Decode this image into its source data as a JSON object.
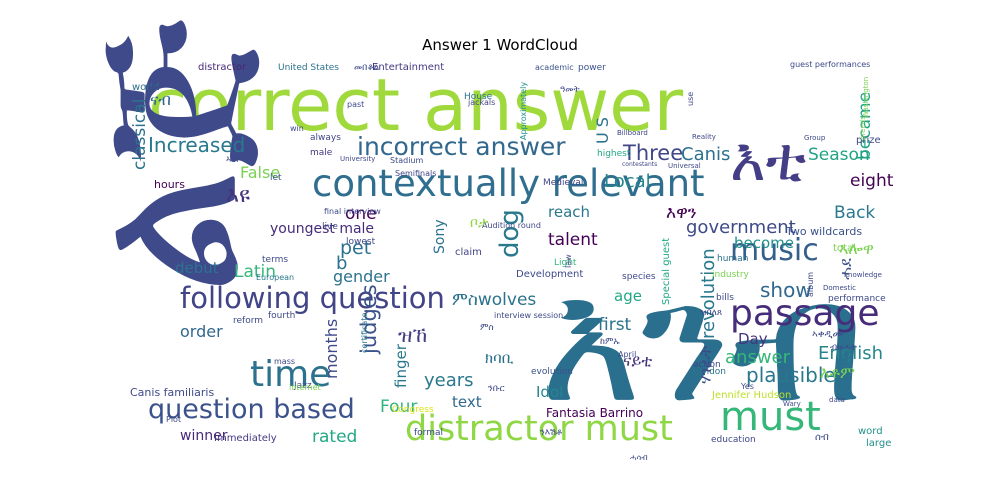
{
  "figure": {
    "title": "Answer 1 WordCloud"
  },
  "chart_data": {
    "type": "wordcloud",
    "title": "Answer 1 WordCloud",
    "colormap": "viridis",
    "background": "#ffffff",
    "words": [
      {
        "text": "correct answer",
        "color": "#a0d93c"
      },
      {
        "text": "ልጅ",
        "color": "#3f4a8a"
      },
      {
        "text": "እንብ",
        "color": "#2a6f8e"
      },
      {
        "text": "contextually relevant",
        "color": "#2f6e8e"
      },
      {
        "text": "እቲ",
        "color": "#433e85"
      },
      {
        "text": "passage",
        "color": "#472c7a"
      },
      {
        "text": "distractor must",
        "color": "#8fd744"
      },
      {
        "text": "must",
        "color": "#35b779"
      },
      {
        "text": "following question",
        "color": "#414487"
      },
      {
        "text": "question based",
        "color": "#3b528b"
      },
      {
        "text": "incorrect answer",
        "color": "#31688e"
      },
      {
        "text": "music",
        "color": "#355f8d"
      },
      {
        "text": "dog",
        "color": "#2a788e"
      },
      {
        "text": "time",
        "color": "#2c728e"
      },
      {
        "text": "Three",
        "color": "#404688"
      },
      {
        "text": "Increased",
        "color": "#2a788e"
      },
      {
        "text": "ናብ",
        "color": "#31688e"
      },
      {
        "text": "False",
        "color": "#7ad151"
      },
      {
        "text": "እዩ",
        "color": "#46337e"
      },
      {
        "text": "Canis",
        "color": "#2c728e"
      },
      {
        "text": "Season",
        "color": "#20a386"
      },
      {
        "text": "eight",
        "color": "#440154"
      },
      {
        "text": "became",
        "color": "#20a386"
      },
      {
        "text": "Back",
        "color": "#2a788e"
      },
      {
        "text": "Local",
        "color": "#25858e"
      },
      {
        "text": "Four",
        "color": "#2fb47c"
      },
      {
        "text": "one",
        "color": "#440154"
      },
      {
        "text": "pet",
        "color": "#2c728e"
      },
      {
        "text": "government",
        "color": "#3e4989"
      },
      {
        "text": "show",
        "color": "#31688e"
      },
      {
        "text": "plausible",
        "color": "#2a788e"
      },
      {
        "text": "English",
        "color": "#25858e"
      },
      {
        "text": "revolution",
        "color": "#2a788e"
      },
      {
        "text": "answer",
        "color": "#35b779"
      },
      {
        "text": "judges",
        "color": "#3b528b"
      },
      {
        "text": "years",
        "color": "#2a788e"
      },
      {
        "text": "rated",
        "color": "#22a884"
      },
      {
        "text": "Latin",
        "color": "#35b779"
      },
      {
        "text": "talent",
        "color": "#440154"
      },
      {
        "text": "classical",
        "color": "#2c728e"
      },
      {
        "text": "months",
        "color": "#3e4989"
      },
      {
        "text": "gender",
        "color": "#2c728e"
      },
      {
        "text": "order",
        "color": "#31688e"
      },
      {
        "text": "debut",
        "color": "#2c728e"
      },
      {
        "text": "reach",
        "color": "#2a788e"
      },
      {
        "text": "become",
        "color": "#21918c"
      },
      {
        "text": "first",
        "color": "#2c728e"
      },
      {
        "text": "age",
        "color": "#22a884"
      },
      {
        "text": "Day",
        "color": "#46337e"
      },
      {
        "text": "finger",
        "color": "#2a788e"
      },
      {
        "text": "Idol",
        "color": "#25858e"
      },
      {
        "text": "text",
        "color": "#31688e"
      },
      {
        "text": "winner",
        "color": "#482878"
      },
      {
        "text": "Two",
        "color": "#2c728e"
      },
      {
        "text": "Sony",
        "color": "#2c728e"
      },
      {
        "text": "ምስwolves",
        "color": "#2c728e"
      },
      {
        "text": "ዝኸ",
        "color": "#433e85"
      },
      {
        "text": "Fantasia Barrino",
        "color": "#440154"
      },
      {
        "text": "youngest male",
        "color": "#472c7a"
      },
      {
        "text": "Two wildcards",
        "color": "#3b528b"
      },
      {
        "text": "Canis familiaris",
        "color": "#3e4989"
      },
      {
        "text": "Jennifer Hudson",
        "color": "#bddf26"
      },
      {
        "text": "Immediately",
        "color": "#443983"
      },
      {
        "text": "Entertainment",
        "color": "#443983"
      },
      {
        "text": "United States",
        "color": "#2c728e"
      },
      {
        "text": "distractor",
        "color": "#482878"
      },
      {
        "text": "Semifinals",
        "color": "#404688"
      },
      {
        "text": "Medieval",
        "color": "#414487"
      },
      {
        "text": "highest",
        "color": "#22a884"
      },
      {
        "text": "Approximately",
        "color": "#21918c"
      },
      {
        "text": "power",
        "color": "#3b528b"
      },
      {
        "text": "guest performances",
        "color": "#3e4989"
      },
      {
        "text": "hours",
        "color": "#440154"
      },
      {
        "text": "world",
        "color": "#2c728e"
      },
      {
        "text": "always",
        "color": "#404688"
      },
      {
        "text": "male",
        "color": "#443983"
      },
      {
        "text": "let",
        "color": "#3b528b"
      },
      {
        "text": "live",
        "color": "#3e4989"
      },
      {
        "text": "claim",
        "color": "#414487"
      },
      {
        "text": "reform",
        "color": "#3e4989"
      },
      {
        "text": "terms",
        "color": "#3e4989"
      },
      {
        "text": "European",
        "color": "#2a788e"
      },
      {
        "text": "Jazz",
        "color": "#3e4989"
      },
      {
        "text": "evolution",
        "color": "#3b528b"
      },
      {
        "text": "formal",
        "color": "#3e4989"
      },
      {
        "text": "education",
        "color": "#3e4989"
      },
      {
        "text": "Development",
        "color": "#3e4989"
      },
      {
        "text": "Light",
        "color": "#35b779"
      },
      {
        "text": "human",
        "color": "#2c728e"
      },
      {
        "text": "industry",
        "color": "#7ad151"
      },
      {
        "text": "species",
        "color": "#3e4989"
      },
      {
        "text": "London",
        "color": "#2c728e"
      },
      {
        "text": "action",
        "color": "#3e4989"
      },
      {
        "text": "bills",
        "color": "#3e4989"
      },
      {
        "text": "performance",
        "color": "#3e4989"
      },
      {
        "text": "prize",
        "color": "#3e4989"
      },
      {
        "text": "total",
        "color": "#7ad151"
      },
      {
        "text": "large",
        "color": "#21918c"
      },
      {
        "text": "word",
        "color": "#21918c"
      },
      {
        "text": "Special guest",
        "color": "#22a884"
      },
      {
        "text": "interview session",
        "color": "#3e4989"
      },
      {
        "text": "House",
        "color": "#2c728e"
      },
      {
        "text": "jackals",
        "color": "#414487"
      },
      {
        "text": "academic",
        "color": "#3b528b"
      },
      {
        "text": "Stadium",
        "color": "#3e4989"
      },
      {
        "text": "final interview",
        "color": "#3e4989"
      },
      {
        "text": "lowest",
        "color": "#3e4989"
      },
      {
        "text": "Audition round",
        "color": "#3e4989"
      },
      {
        "text": "Congress",
        "color": "#dde318"
      },
      {
        "text": "certificate",
        "color": "#2a788e"
      },
      {
        "text": "internet",
        "color": "#7ad151"
      },
      {
        "text": "fourth",
        "color": "#3e4989"
      },
      {
        "text": "mass",
        "color": "#3e4989"
      },
      {
        "text": "Plot",
        "color": "#3e4989"
      },
      {
        "text": "Yes",
        "color": "#3e4989"
      },
      {
        "text": "April",
        "color": "#3e4989"
      },
      {
        "text": "Billboard",
        "color": "#3e4989"
      },
      {
        "text": "Reality",
        "color": "#3e4989"
      },
      {
        "text": "Group",
        "color": "#3e4989"
      },
      {
        "text": "Universal",
        "color": "#3e4989"
      },
      {
        "text": "contestants",
        "color": "#3e4989"
      },
      {
        "text": "University",
        "color": "#3e4989"
      },
      {
        "text": "Domestic",
        "color": "#3e4989"
      },
      {
        "text": "knowledge",
        "color": "#3e4989"
      },
      {
        "text": "album",
        "color": "#3e4989"
      },
      {
        "text": "breeds",
        "color": "#7ad151"
      },
      {
        "text": "Washington",
        "color": "#7ad151"
      },
      {
        "text": "Wary",
        "color": "#3e4989"
      },
      {
        "text": "data",
        "color": "#3e4989"
      },
      {
        "text": "law",
        "color": "#3e4989"
      },
      {
        "text": "use",
        "color": "#3e4989"
      },
      {
        "text": "win",
        "color": "#3e4989"
      },
      {
        "text": "past",
        "color": "#3e4989"
      },
      {
        "text": "b",
        "color": "#2c728e"
      },
      {
        "text": "U S",
        "color": "#2c728e"
      },
      {
        "text": "ቦታ",
        "color": "#8fd744"
      },
      {
        "text": "እዋን",
        "color": "#440154"
      },
      {
        "text": "ኣሎዋ",
        "color": "#7ad151"
      },
      {
        "text": "ሓደ",
        "color": "#3b528b"
      },
      {
        "text": "ናይቲ",
        "color": "#46337e"
      },
      {
        "text": "ክባቢ",
        "color": "#2c728e"
      },
      {
        "text": "ሃገራት",
        "color": "#3e4989"
      },
      {
        "text": "ንእሽቶ",
        "color": "#3e4989"
      },
      {
        "text": "እቶም",
        "color": "#7ad151"
      },
      {
        "text": "መበቆል",
        "color": "#3e4989"
      },
      {
        "text": "ምስ",
        "color": "#3e4989"
      },
      {
        "text": "ኣቀዲሙ",
        "color": "#3e4989"
      },
      {
        "text": "ዝበለጸ",
        "color": "#3e4989"
      },
      {
        "text": "ከምኡ",
        "color": "#3e4989"
      },
      {
        "text": "ንቡር",
        "color": "#3e4989"
      },
      {
        "text": "ብዙሓት",
        "color": "#3e4989"
      },
      {
        "text": "ክልተ",
        "color": "#3e4989"
      },
      {
        "text": "ሰብ",
        "color": "#3e4989"
      },
      {
        "text": "ዓመት",
        "color": "#3e4989"
      },
      {
        "text": "ኣብ",
        "color": "#3e4989"
      },
      {
        "text": "ሓሳብ",
        "color": "#3e4989"
      }
    ]
  }
}
